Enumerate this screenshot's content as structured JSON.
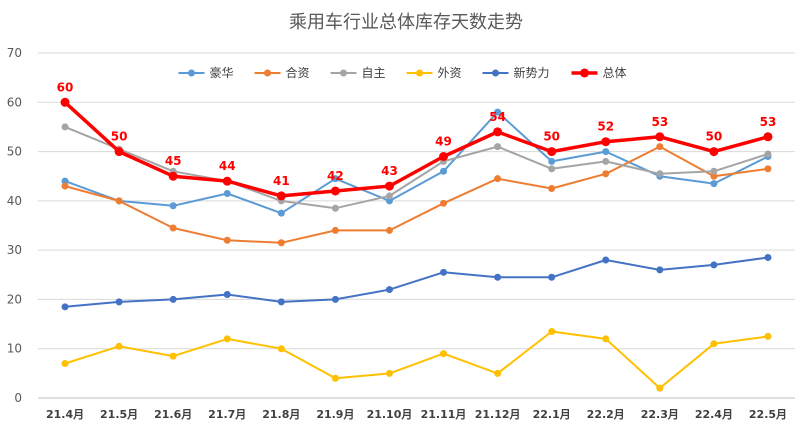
{
  "chart_data": {
    "type": "line",
    "title": "乘用车行业总体库存天数走势",
    "xlabel": "",
    "ylabel": "",
    "ylim": [
      0,
      70
    ],
    "yticks": [
      0,
      10,
      20,
      30,
      40,
      50,
      60,
      70
    ],
    "grid": true,
    "legend_position": "top",
    "categories": [
      "21.4月",
      "21.5月",
      "21.6月",
      "21.7月",
      "21.8月",
      "21.9月",
      "21.10月",
      "21.11月",
      "21.12月",
      "22.1月",
      "22.2月",
      "22.3月",
      "22.4月",
      "22.5月"
    ],
    "series": [
      {
        "name": "豪华",
        "color": "#5b9bd5",
        "values": [
          44,
          40,
          39,
          41.5,
          37.5,
          44.5,
          40,
          46,
          58,
          48,
          50,
          45,
          43.5,
          49
        ]
      },
      {
        "name": "合资",
        "color": "#ed7d31",
        "values": [
          43,
          40,
          34.5,
          32,
          31.5,
          34,
          34,
          39.5,
          44.5,
          42.5,
          45.5,
          51,
          45,
          46.5
        ]
      },
      {
        "name": "自主",
        "color": "#a5a5a5",
        "values": [
          55,
          50.5,
          46,
          44,
          40,
          38.5,
          41,
          48,
          51,
          46.5,
          48,
          45.5,
          46,
          49.5
        ]
      },
      {
        "name": "外资",
        "color": "#ffc000",
        "values": [
          7,
          10.5,
          8.5,
          12,
          10,
          4,
          5,
          9,
          5,
          13.5,
          12,
          2,
          11,
          12.5
        ]
      },
      {
        "name": "新势力",
        "color": "#4472c4",
        "values": [
          18.5,
          19.5,
          20,
          21,
          19.5,
          20,
          22,
          25.5,
          24.5,
          24.5,
          28,
          26,
          27,
          28.5
        ]
      },
      {
        "name": "总体",
        "color": "#ff0000",
        "values": [
          60,
          50,
          45,
          44,
          41,
          42,
          43,
          49,
          54,
          50,
          52,
          53,
          50,
          53
        ],
        "labels": [
          "60",
          "50",
          "45",
          "44",
          "41",
          "42",
          "43",
          "49",
          "54",
          "50",
          "52",
          "53",
          "50",
          "53"
        ]
      }
    ]
  }
}
